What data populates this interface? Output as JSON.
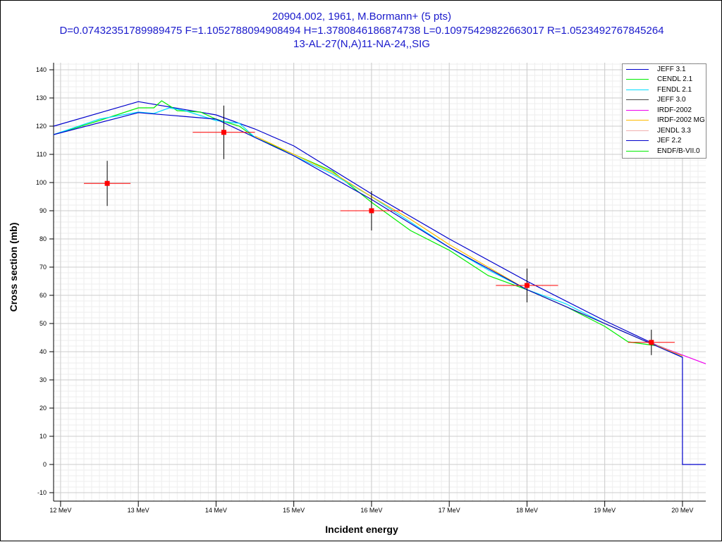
{
  "chart_data": {
    "type": "line",
    "title": [
      "20904.002, 1961, M.Bormann+ (5 pts)",
      "D=0.07432351789989475 F=1.1052788094908494 H=1.3780846186874738 L=0.10975429822663017 R=1.0523492767845264",
      "13-AL-27(N,A)11-NA-24,,SIG"
    ],
    "xlabel": "Incident energy",
    "ylabel": "Cross section (mb)",
    "xlim": [
      11.91,
      20.3
    ],
    "ylim": [
      -13,
      142.5
    ],
    "xticks": [
      12,
      13,
      14,
      15,
      16,
      17,
      18,
      19,
      20
    ],
    "xtick_suffix": " MeV",
    "yticks": [
      -10,
      0,
      10,
      20,
      30,
      40,
      50,
      60,
      70,
      80,
      90,
      100,
      110,
      120,
      130,
      140
    ],
    "grid": true,
    "legend_position": "top-right",
    "series": [
      {
        "name": "JEFF 3.1",
        "color": "#0000cc",
        "x": [
          11.91,
          13,
          14,
          14.5,
          15,
          16,
          17,
          18,
          19,
          20,
          20,
          20.3
        ],
        "y": [
          120,
          128.7,
          124,
          119,
          113,
          96,
          80,
          65,
          51,
          38,
          0,
          0
        ]
      },
      {
        "name": "CENDL 2.1",
        "color": "#00ee00",
        "x": [
          11.91,
          12.5,
          13,
          13.2,
          13.3,
          13.5,
          13.8,
          14,
          14.3,
          14.5,
          15,
          15.5,
          16,
          16.5,
          17,
          17.5,
          18,
          18.5,
          19,
          19.3,
          19.7,
          20
        ],
        "y": [
          117,
          122,
          126.5,
          126.5,
          129,
          125.5,
          125,
          122.5,
          120,
          116,
          110,
          104,
          93,
          83,
          76,
          67,
          62,
          56,
          49,
          43.5,
          42,
          38.5
        ]
      },
      {
        "name": "FENDL 2.1",
        "color": "#00ddff",
        "x": [
          11.91,
          12.5,
          13,
          13.2,
          13.4,
          13.6,
          14,
          14.3,
          14.5,
          15,
          15.5,
          16,
          16.5,
          17,
          17.5,
          18,
          18.5,
          19,
          19.5,
          20
        ],
        "y": [
          117,
          122.5,
          125,
          124.5,
          126.5,
          125.5,
          122,
          121,
          116,
          109.5,
          103,
          95,
          86,
          77,
          69,
          62,
          57,
          50,
          44,
          38.5
        ]
      },
      {
        "name": "JEFF 3.0",
        "color": "#444444",
        "x": [],
        "y": []
      },
      {
        "name": "IRDF-2002",
        "color": "#ee00ee",
        "x": [
          19.5,
          20.3
        ],
        "y": [
          44,
          35.7
        ]
      },
      {
        "name": "IRDF-2002 MG",
        "color": "#ffbb00",
        "x": [
          14.5,
          15,
          15.5,
          16,
          16.5,
          17,
          17.5,
          18,
          18.5,
          19,
          19.5,
          20
        ],
        "y": [
          116.5,
          110,
          103.5,
          95,
          87,
          78,
          70,
          62,
          56,
          50,
          44,
          38.5
        ]
      },
      {
        "name": "JENDL 3.3",
        "color": "#f0b0b0",
        "x": [],
        "y": []
      },
      {
        "name": "JEF 2.2",
        "color": "#0000cc",
        "x": [
          11.91,
          13,
          14,
          15,
          16,
          17,
          18,
          19,
          20
        ],
        "y": [
          117,
          124.8,
          122.5,
          109.5,
          94,
          77,
          62,
          50,
          38
        ]
      },
      {
        "name": "ENDF/B-VII.0",
        "color": "#00ee00",
        "x": [],
        "y": []
      }
    ],
    "experimental": {
      "color": "#ff0000",
      "points": [
        {
          "x": 12.6,
          "y": 99.7,
          "dx": 0.3,
          "dy": 8
        },
        {
          "x": 14.1,
          "y": 117.8,
          "dx": 0.4,
          "dy": 9.5
        },
        {
          "x": 16.0,
          "y": 90.0,
          "dx": 0.4,
          "dy": 7
        },
        {
          "x": 18.0,
          "y": 63.5,
          "dx": 0.4,
          "dy": 6
        },
        {
          "x": 19.6,
          "y": 43.3,
          "dx": 0.3,
          "dy": 4.5
        }
      ]
    }
  }
}
